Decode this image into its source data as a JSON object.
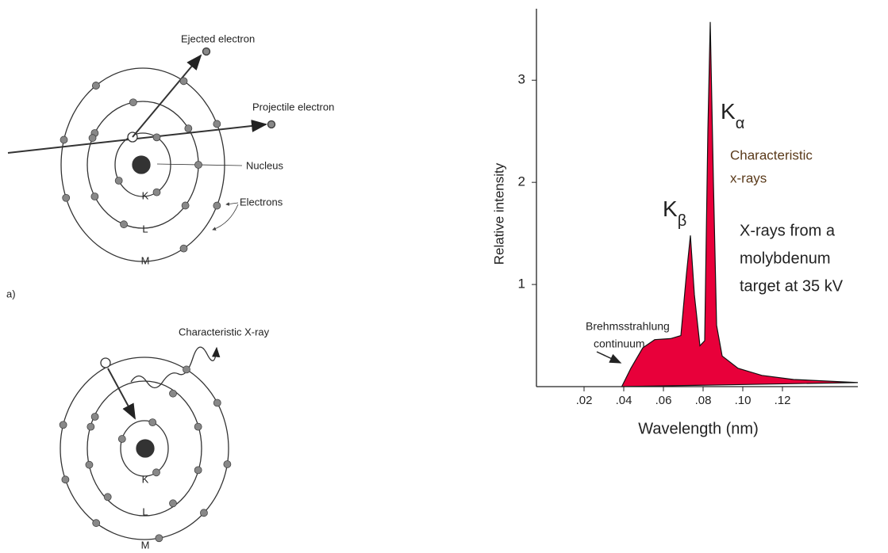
{
  "chart_data": {
    "type": "area",
    "xlabel": "Wavelength (nm)",
    "ylabel": "Relative intensity",
    "x": [
      0.039,
      0.0436,
      0.0496,
      0.0556,
      0.0636,
      0.0688,
      0.0716,
      0.0736,
      0.0756,
      0.0784,
      0.0808,
      0.0824,
      0.0836,
      0.0852,
      0.0868,
      0.0896,
      0.0976,
      0.1096,
      0.1256,
      0.158
    ],
    "values": [
      0,
      0.18,
      0.38,
      0.46,
      0.47,
      0.5,
      1.1,
      1.48,
      0.9,
      0.4,
      0.45,
      2.5,
      3.57,
      2.0,
      0.6,
      0.3,
      0.18,
      0.11,
      0.07,
      0.04
    ],
    "color": "#e8003a",
    "xlim": [
      -0.004,
      0.158
    ],
    "ylim": [
      0,
      3.7
    ],
    "xticks": [
      {
        "value": 0.02,
        "label": ".02"
      },
      {
        "value": 0.04,
        "label": ".04"
      },
      {
        "value": 0.06,
        "label": ".06"
      },
      {
        "value": 0.08,
        "label": ".08"
      },
      {
        "value": 0.1,
        "label": ".10"
      },
      {
        "value": 0.12,
        "label": ".12"
      }
    ],
    "yticks": [
      1,
      2,
      3
    ],
    "annotations": [
      {
        "text": "K",
        "subscript": "α"
      },
      {
        "text": "K",
        "subscript": "β"
      },
      {
        "lines": [
          "Characteristic",
          "x-rays"
        ]
      },
      {
        "lines": [
          "X-rays from a",
          "molybdenum",
          "target at 35 kV"
        ]
      },
      {
        "lines": [
          "Brehmsstrahlung",
          "continuum"
        ]
      }
    ]
  },
  "diagram_a": {
    "ejected_electron": "Ejected electron",
    "projectile_electron": "Projectile electron",
    "nucleus": "Nucleus",
    "electrons": "Electrons",
    "shells": [
      "K",
      "L",
      "M"
    ],
    "panel_label": "a)"
  },
  "diagram_b": {
    "characteristic_xray": "Characteristic X-ray",
    "shells": [
      "K",
      "L",
      "M"
    ]
  }
}
